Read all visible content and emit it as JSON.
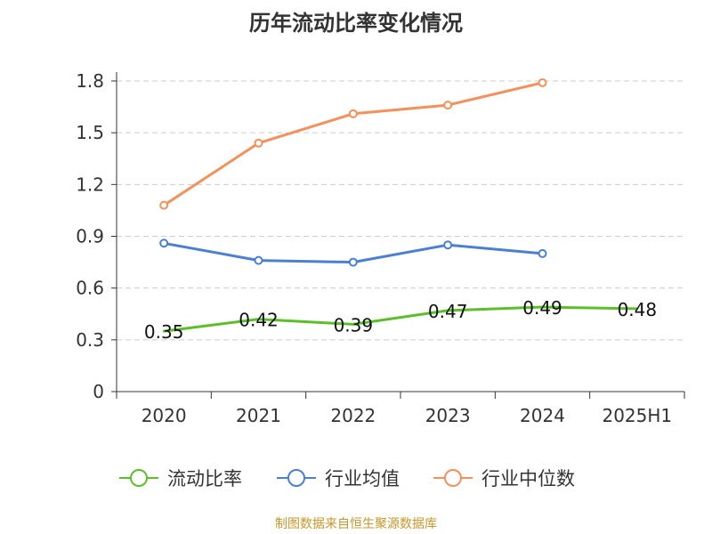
{
  "chart_data": {
    "type": "line",
    "title": "历年流动比率变化情况",
    "categories": [
      "2020",
      "2021",
      "2022",
      "2023",
      "2024",
      "2025H1"
    ],
    "ylim": [
      0,
      1.8
    ],
    "yticks": [
      "0",
      "0.3",
      "0.6",
      "0.9",
      "1.2",
      "1.5",
      "1.8"
    ],
    "grid": true,
    "legend_position": "bottom",
    "series": [
      {
        "name": "流动比率",
        "color": "#5cbf2a",
        "values": [
          0.35,
          0.42,
          0.39,
          0.47,
          0.49,
          0.48
        ],
        "labels": [
          "0.35",
          "0.42",
          "0.39",
          "0.47",
          "0.49",
          "0.48"
        ]
      },
      {
        "name": "行业均值",
        "color": "#4a7fd6",
        "values": [
          0.86,
          0.76,
          0.75,
          0.85,
          0.8,
          null
        ]
      },
      {
        "name": "行业中位数",
        "color": "#f5905a",
        "values": [
          1.08,
          1.44,
          1.61,
          1.66,
          1.79,
          null
        ]
      }
    ]
  },
  "source": "制图数据来自恒生聚源数据库"
}
